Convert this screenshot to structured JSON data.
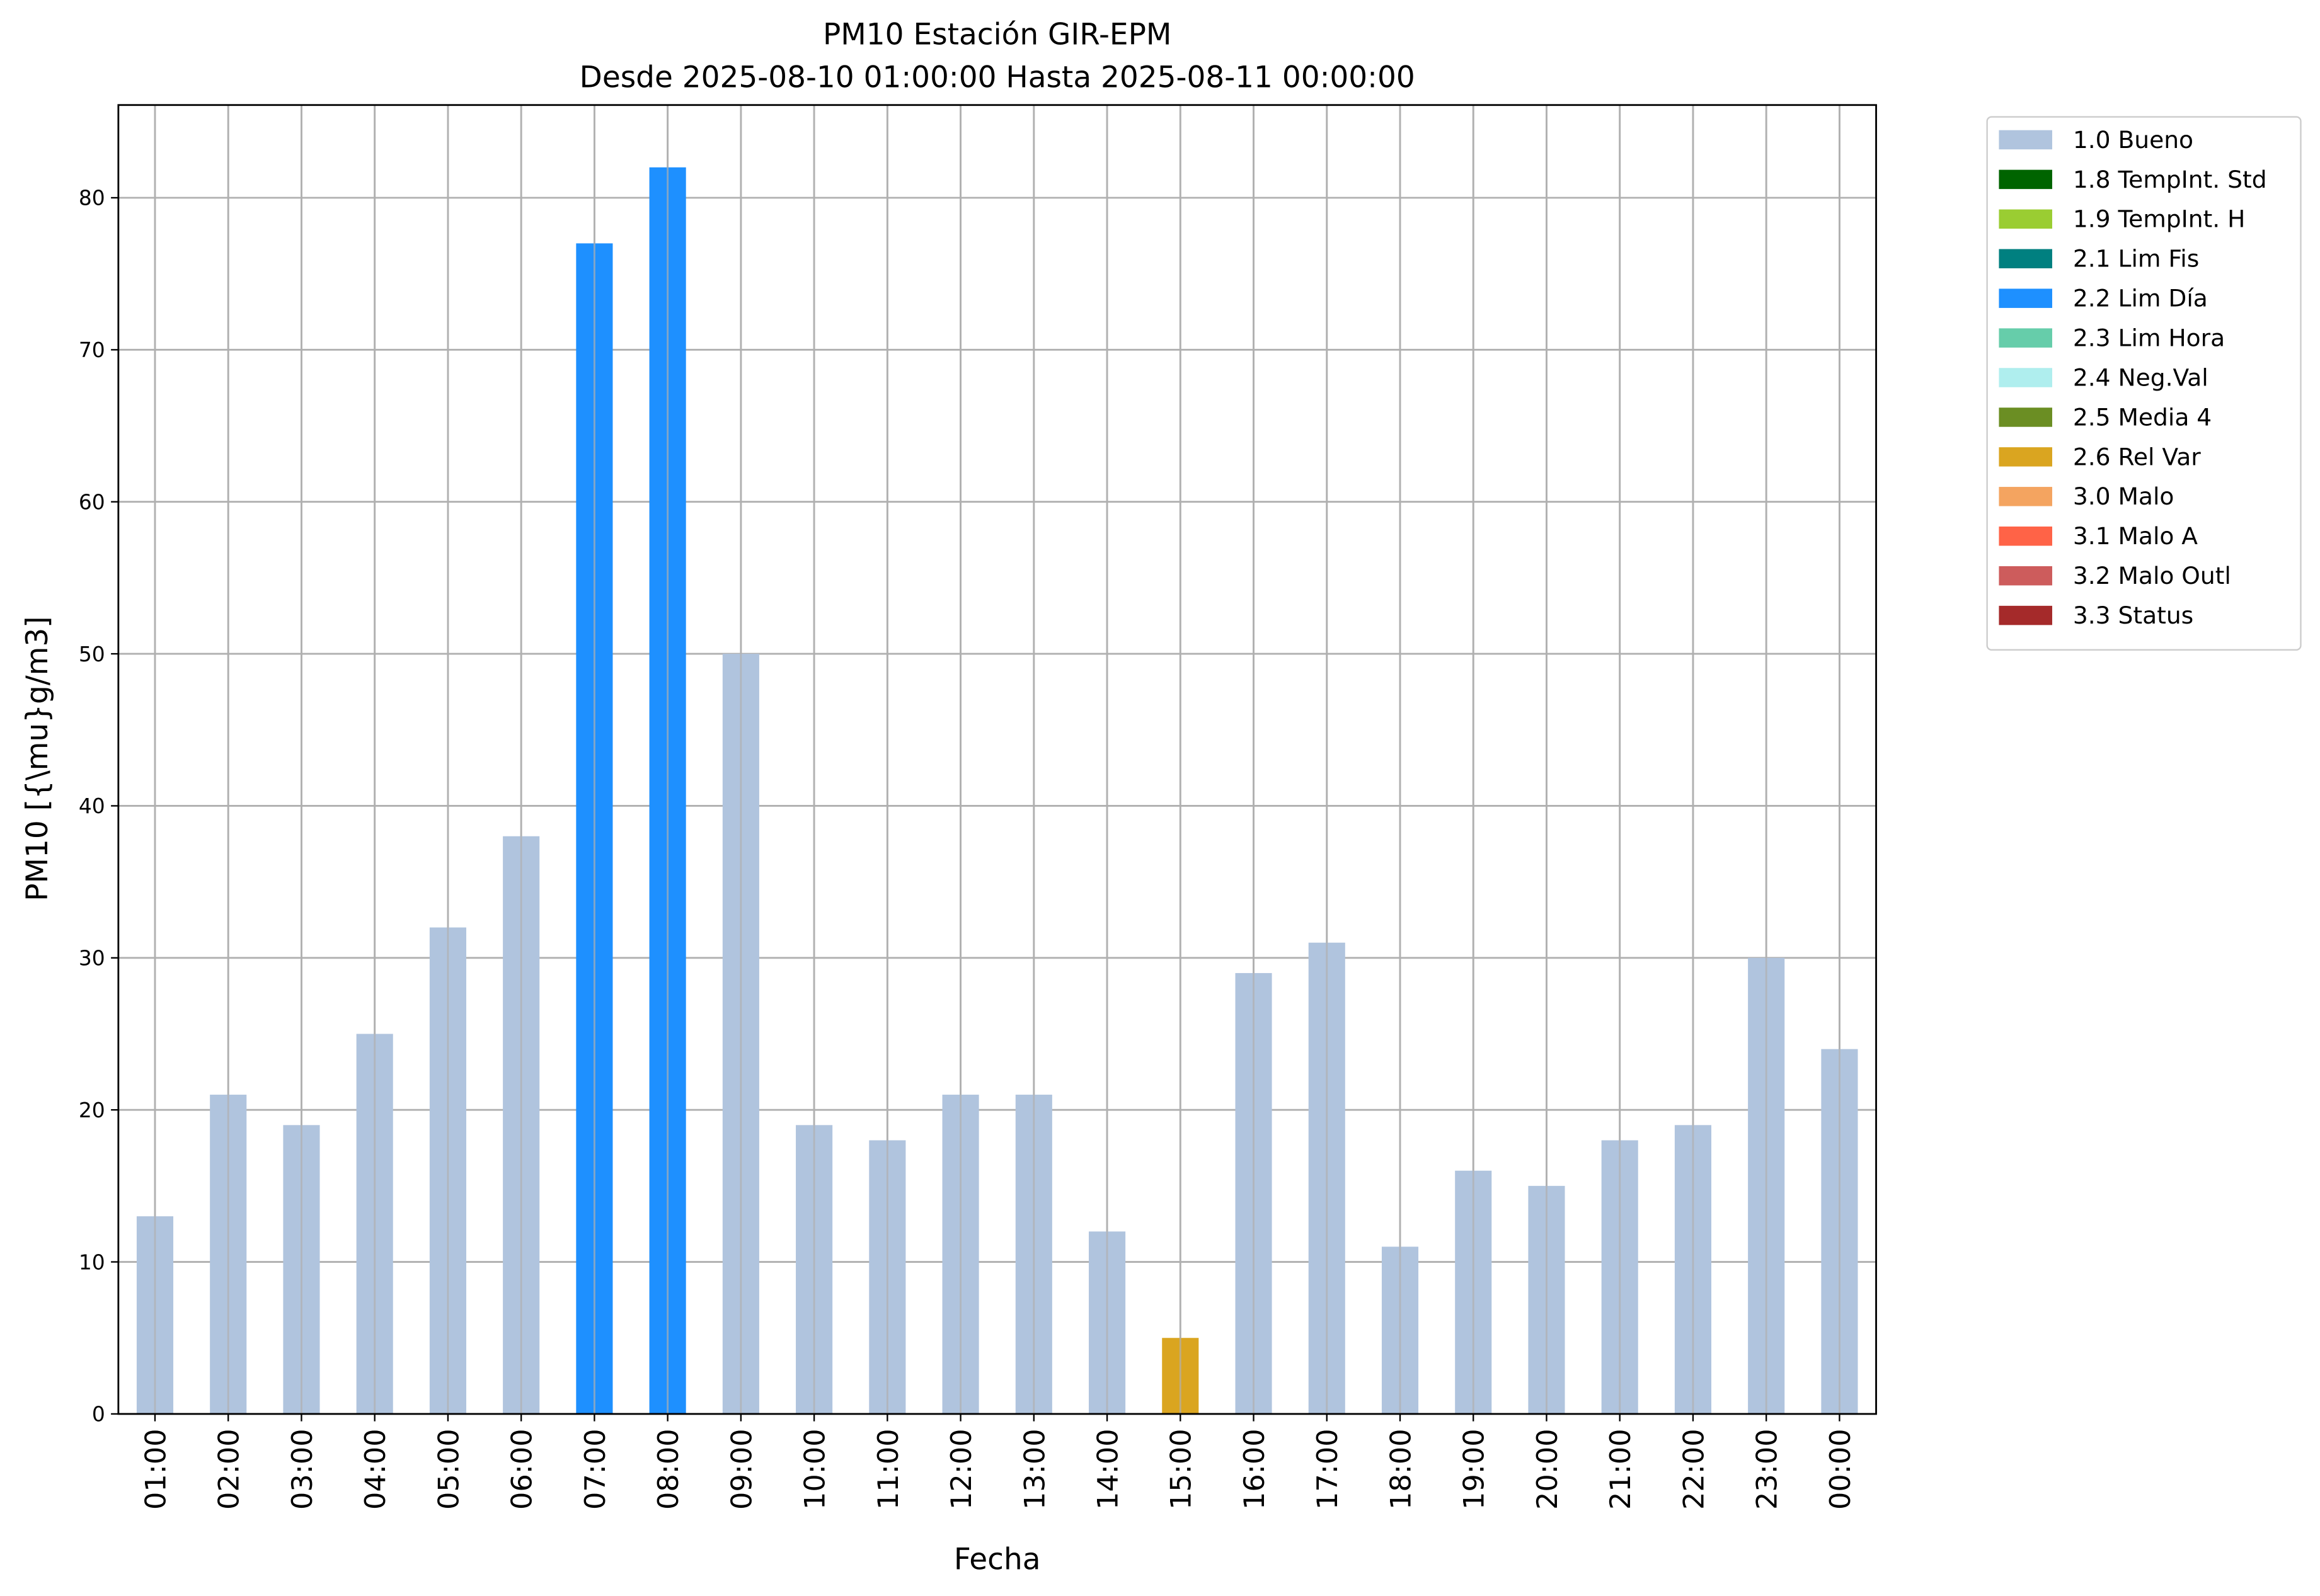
{
  "chart_data": {
    "type": "bar",
    "stacked": true,
    "title": "PM10 Estación GIR-EPM",
    "subtitle": "Desde 2025-08-10 01:00:00 Hasta 2025-08-11 00:00:00",
    "x_label": "Fecha",
    "y_label": "PM10 [{\\mu}g/m3]",
    "categories": [
      "01:00",
      "02:00",
      "03:00",
      "04:00",
      "05:00",
      "06:00",
      "07:00",
      "08:00",
      "09:00",
      "10:00",
      "11:00",
      "12:00",
      "13:00",
      "14:00",
      "15:00",
      "16:00",
      "17:00",
      "18:00",
      "19:00",
      "20:00",
      "21:00",
      "22:00",
      "23:00",
      "00:00"
    ],
    "series": [
      {
        "name": "1.0 Bueno",
        "color": "#b0c4de",
        "values": [
          13,
          21,
          19,
          25,
          32,
          38,
          null,
          null,
          50,
          19,
          18,
          21,
          21,
          12,
          null,
          29,
          31,
          11,
          16,
          15,
          18,
          19,
          30,
          24
        ]
      },
      {
        "name": "1.8 TempInt. Std",
        "color": "#006400",
        "values": [
          null,
          null,
          null,
          null,
          null,
          null,
          null,
          null,
          null,
          null,
          null,
          null,
          null,
          null,
          null,
          null,
          null,
          null,
          null,
          null,
          null,
          null,
          null,
          null
        ]
      },
      {
        "name": "1.9 TempInt. H",
        "color": "#9acd32",
        "values": [
          null,
          null,
          null,
          null,
          null,
          null,
          null,
          null,
          null,
          null,
          null,
          null,
          null,
          null,
          null,
          null,
          null,
          null,
          null,
          null,
          null,
          null,
          null,
          null
        ]
      },
      {
        "name": "2.1 Lim Fis",
        "color": "#008080",
        "values": [
          null,
          null,
          null,
          null,
          null,
          null,
          null,
          null,
          null,
          null,
          null,
          null,
          null,
          null,
          null,
          null,
          null,
          null,
          null,
          null,
          null,
          null,
          null,
          null
        ]
      },
      {
        "name": "2.2 Lim Día",
        "color": "#1e90ff",
        "values": [
          null,
          null,
          null,
          null,
          null,
          null,
          77,
          82,
          null,
          null,
          null,
          null,
          null,
          null,
          null,
          null,
          null,
          null,
          null,
          null,
          null,
          null,
          null,
          null
        ]
      },
      {
        "name": "2.3 Lim Hora",
        "color": "#66cdaa",
        "values": [
          null,
          null,
          null,
          null,
          null,
          null,
          null,
          null,
          null,
          null,
          null,
          null,
          null,
          null,
          null,
          null,
          null,
          null,
          null,
          null,
          null,
          null,
          null,
          null
        ]
      },
      {
        "name": "2.4 Neg.Val",
        "color": "#afeeee",
        "values": [
          null,
          null,
          null,
          null,
          null,
          null,
          null,
          null,
          null,
          null,
          null,
          null,
          null,
          null,
          null,
          null,
          null,
          null,
          null,
          null,
          null,
          null,
          null,
          null
        ]
      },
      {
        "name": "2.5 Media 4",
        "color": "#6b8e23",
        "values": [
          null,
          null,
          null,
          null,
          null,
          null,
          null,
          null,
          null,
          null,
          null,
          null,
          null,
          null,
          null,
          null,
          null,
          null,
          null,
          null,
          null,
          null,
          null,
          null
        ]
      },
      {
        "name": "2.6 Rel Var",
        "color": "#daa520",
        "values": [
          null,
          null,
          null,
          null,
          null,
          null,
          null,
          null,
          null,
          null,
          null,
          null,
          null,
          null,
          5,
          null,
          null,
          null,
          null,
          null,
          null,
          null,
          null,
          null
        ]
      },
      {
        "name": "3.0 Malo",
        "color": "#f4a460",
        "values": [
          null,
          null,
          null,
          null,
          null,
          null,
          null,
          null,
          null,
          null,
          null,
          null,
          null,
          null,
          null,
          null,
          null,
          null,
          null,
          null,
          null,
          null,
          null,
          null
        ]
      },
      {
        "name": "3.1 Malo A",
        "color": "#ff6347",
        "values": [
          null,
          null,
          null,
          null,
          null,
          null,
          null,
          null,
          null,
          null,
          null,
          null,
          null,
          null,
          null,
          null,
          null,
          null,
          null,
          null,
          null,
          null,
          null,
          null
        ]
      },
      {
        "name": "3.2 Malo Outl",
        "color": "#cd5c5c",
        "values": [
          null,
          null,
          null,
          null,
          null,
          null,
          null,
          null,
          null,
          null,
          null,
          null,
          null,
          null,
          null,
          null,
          null,
          null,
          null,
          null,
          null,
          null,
          null,
          null
        ]
      },
      {
        "name": "3.3 Status",
        "color": "#a52a2a",
        "values": [
          null,
          null,
          null,
          null,
          null,
          null,
          null,
          null,
          null,
          null,
          null,
          null,
          null,
          null,
          null,
          null,
          null,
          null,
          null,
          null,
          null,
          null,
          null,
          null
        ]
      }
    ],
    "ylim": [
      0,
      86.1
    ],
    "yticks": [
      0,
      10,
      20,
      30,
      40,
      50,
      60,
      70,
      80
    ],
    "grid": true,
    "legend": "outside-upper-right"
  }
}
